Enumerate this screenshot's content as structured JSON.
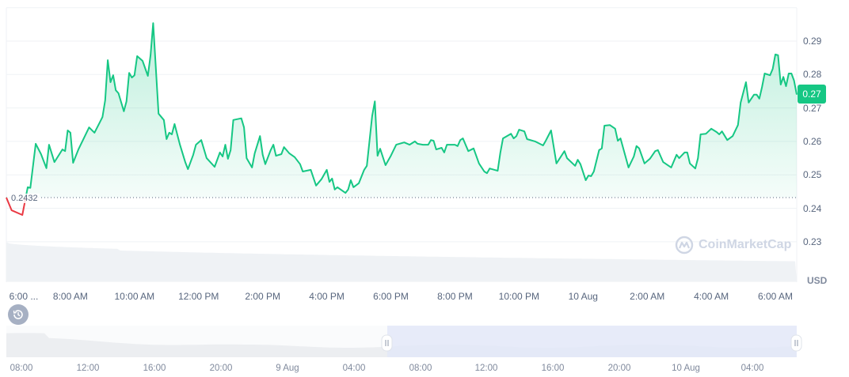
{
  "chart_data": {
    "type": "area",
    "currency_label": "USD",
    "baseline": {
      "value": 0.2432,
      "label": "0.2432"
    },
    "current_price_label": "0.27",
    "ylim": [
      0.218,
      0.3
    ],
    "y_ticks": [
      0.23,
      0.24,
      0.25,
      0.26,
      0.27,
      0.28,
      0.29
    ],
    "y_tick_labels": [
      "0.23",
      "0.24",
      "0.25",
      "0.26",
      "0.27",
      "0.28",
      "0.29"
    ],
    "x_range": [
      "9 Aug 06:00",
      "10 Aug 06:40"
    ],
    "x_ticks": [
      {
        "t": "9 Aug 06:00",
        "label": "6:00 ..."
      },
      {
        "t": "9 Aug 08:00",
        "label": "8:00 AM"
      },
      {
        "t": "9 Aug 10:00",
        "label": "10:00 AM"
      },
      {
        "t": "9 Aug 12:00",
        "label": "12:00 PM"
      },
      {
        "t": "9 Aug 14:00",
        "label": "2:00 PM"
      },
      {
        "t": "9 Aug 16:00",
        "label": "4:00 PM"
      },
      {
        "t": "9 Aug 18:00",
        "label": "6:00 PM"
      },
      {
        "t": "9 Aug 20:00",
        "label": "8:00 PM"
      },
      {
        "t": "9 Aug 22:00",
        "label": "10:00 PM"
      },
      {
        "t": "10 Aug 00:00",
        "label": "10 Aug"
      },
      {
        "t": "10 Aug 02:00",
        "label": "2:00 AM"
      },
      {
        "t": "10 Aug 04:00",
        "label": "4:00 AM"
      },
      {
        "t": "10 Aug 06:00",
        "label": "6:00 AM"
      }
    ],
    "grid": true,
    "colors": {
      "up": "#16c784",
      "down": "#ea3943",
      "volume": "#eff2f5",
      "navigator_selection": "#e8ecfa"
    },
    "series": [
      [
        "9 Aug 06:00",
        0.2432
      ],
      [
        "9 Aug 06:10",
        0.2394
      ],
      [
        "9 Aug 06:30",
        0.238
      ],
      [
        "9 Aug 06:40",
        0.2463
      ],
      [
        "9 Aug 06:45",
        0.2461
      ],
      [
        "9 Aug 06:55",
        0.2593
      ],
      [
        "9 Aug 07:05",
        0.2562
      ],
      [
        "9 Aug 07:15",
        0.252
      ],
      [
        "9 Aug 07:20",
        0.259
      ],
      [
        "9 Aug 07:30",
        0.2538
      ],
      [
        "9 Aug 07:45",
        0.2576
      ],
      [
        "9 Aug 07:50",
        0.2571
      ],
      [
        "9 Aug 07:55",
        0.2633
      ],
      [
        "9 Aug 08:00",
        0.2626
      ],
      [
        "9 Aug 08:05",
        0.2536
      ],
      [
        "9 Aug 08:15",
        0.2576
      ],
      [
        "9 Aug 08:25",
        0.2609
      ],
      [
        "9 Aug 08:35",
        0.2642
      ],
      [
        "9 Aug 08:45",
        0.2626
      ],
      [
        "9 Aug 08:55",
        0.2657
      ],
      [
        "9 Aug 09:00",
        0.2673
      ],
      [
        "9 Aug 09:05",
        0.2723
      ],
      [
        "9 Aug 09:10",
        0.2843
      ],
      [
        "9 Aug 09:15",
        0.2777
      ],
      [
        "9 Aug 09:20",
        0.2798
      ],
      [
        "9 Aug 09:25",
        0.2753
      ],
      [
        "9 Aug 09:30",
        0.2744
      ],
      [
        "9 Aug 09:40",
        0.269
      ],
      [
        "9 Aug 09:45",
        0.272
      ],
      [
        "9 Aug 09:50",
        0.2805
      ],
      [
        "9 Aug 09:55",
        0.2791
      ],
      [
        "9 Aug 10:00",
        0.2798
      ],
      [
        "9 Aug 10:05",
        0.2855
      ],
      [
        "9 Aug 10:15",
        0.2841
      ],
      [
        "9 Aug 10:25",
        0.2796
      ],
      [
        "9 Aug 10:30",
        0.2858
      ],
      [
        "9 Aug 10:35",
        0.2954
      ],
      [
        "9 Aug 10:45",
        0.2683
      ],
      [
        "9 Aug 10:55",
        0.2664
      ],
      [
        "9 Aug 11:00",
        0.2607
      ],
      [
        "9 Aug 11:05",
        0.2626
      ],
      [
        "9 Aug 11:10",
        0.2621
      ],
      [
        "9 Aug 11:15",
        0.2652
      ],
      [
        "9 Aug 11:25",
        0.259
      ],
      [
        "9 Aug 11:35",
        0.2538
      ],
      [
        "9 Aug 11:40",
        0.2517
      ],
      [
        "9 Aug 11:50",
        0.256
      ],
      [
        "9 Aug 11:55",
        0.259
      ],
      [
        "9 Aug 12:05",
        0.2604
      ],
      [
        "9 Aug 12:15",
        0.255
      ],
      [
        "9 Aug 12:30",
        0.2524
      ],
      [
        "9 Aug 12:40",
        0.2567
      ],
      [
        "9 Aug 12:45",
        0.2555
      ],
      [
        "9 Aug 12:50",
        0.259
      ],
      [
        "9 Aug 12:55",
        0.2548
      ],
      [
        "9 Aug 13:00",
        0.2574
      ],
      [
        "9 Aug 13:05",
        0.2664
      ],
      [
        "9 Aug 13:20",
        0.2669
      ],
      [
        "9 Aug 13:25",
        0.2642
      ],
      [
        "9 Aug 13:30",
        0.255
      ],
      [
        "9 Aug 13:40",
        0.2522
      ],
      [
        "9 Aug 13:45",
        0.2564
      ],
      [
        "9 Aug 13:55",
        0.2616
      ],
      [
        "9 Aug 14:00",
        0.256
      ],
      [
        "9 Aug 14:05",
        0.2532
      ],
      [
        "9 Aug 14:15",
        0.2574
      ],
      [
        "9 Aug 14:20",
        0.259
      ],
      [
        "9 Aug 14:25",
        0.2557
      ],
      [
        "9 Aug 14:35",
        0.2562
      ],
      [
        "9 Aug 14:40",
        0.2583
      ],
      [
        "9 Aug 14:50",
        0.2564
      ],
      [
        "9 Aug 15:00",
        0.2553
      ],
      [
        "9 Aug 15:10",
        0.2532
      ],
      [
        "9 Aug 15:15",
        0.251
      ],
      [
        "9 Aug 15:30",
        0.2515
      ],
      [
        "9 Aug 15:40",
        0.2468
      ],
      [
        "9 Aug 15:50",
        0.2487
      ],
      [
        "9 Aug 16:00",
        0.2515
      ],
      [
        "9 Aug 16:05",
        0.2479
      ],
      [
        "9 Aug 16:10",
        0.2489
      ],
      [
        "9 Aug 16:15",
        0.2456
      ],
      [
        "9 Aug 16:20",
        0.2463
      ],
      [
        "9 Aug 16:35",
        0.2446
      ],
      [
        "9 Aug 16:40",
        0.2456
      ],
      [
        "9 Aug 16:45",
        0.2484
      ],
      [
        "9 Aug 16:50",
        0.2463
      ],
      [
        "9 Aug 17:00",
        0.2475
      ],
      [
        "9 Aug 17:10",
        0.2515
      ],
      [
        "9 Aug 17:15",
        0.2527
      ],
      [
        "9 Aug 17:25",
        0.2676
      ],
      [
        "9 Aug 17:30",
        0.272
      ],
      [
        "9 Aug 17:35",
        0.2557
      ],
      [
        "9 Aug 17:40",
        0.2578
      ],
      [
        "9 Aug 17:50",
        0.2529
      ],
      [
        "9 Aug 18:00",
        0.2557
      ],
      [
        "9 Aug 18:10",
        0.259
      ],
      [
        "9 Aug 18:25",
        0.2597
      ],
      [
        "9 Aug 18:35",
        0.259
      ],
      [
        "9 Aug 18:45",
        0.26
      ],
      [
        "9 Aug 18:50",
        0.2593
      ],
      [
        "9 Aug 19:00",
        0.259
      ],
      [
        "9 Aug 19:10",
        0.259
      ],
      [
        "9 Aug 19:15",
        0.2604
      ],
      [
        "9 Aug 19:20",
        0.2602
      ],
      [
        "9 Aug 19:25",
        0.2576
      ],
      [
        "9 Aug 19:35",
        0.2581
      ],
      [
        "9 Aug 19:40",
        0.2567
      ],
      [
        "9 Aug 19:45",
        0.259
      ],
      [
        "9 Aug 20:00",
        0.259
      ],
      [
        "9 Aug 20:05",
        0.2586
      ],
      [
        "9 Aug 20:10",
        0.2604
      ],
      [
        "9 Aug 20:15",
        0.2609
      ],
      [
        "9 Aug 20:25",
        0.2571
      ],
      [
        "9 Aug 20:35",
        0.2579
      ],
      [
        "9 Aug 20:45",
        0.2534
      ],
      [
        "9 Aug 20:55",
        0.251
      ],
      [
        "9 Aug 21:00",
        0.2505
      ],
      [
        "9 Aug 21:05",
        0.2519
      ],
      [
        "9 Aug 21:20",
        0.2512
      ],
      [
        "9 Aug 21:25",
        0.2567
      ],
      [
        "9 Aug 21:30",
        0.2609
      ],
      [
        "9 Aug 21:45",
        0.2623
      ],
      [
        "9 Aug 21:50",
        0.2609
      ],
      [
        "9 Aug 21:55",
        0.2616
      ],
      [
        "9 Aug 22:00",
        0.2635
      ],
      [
        "9 Aug 22:10",
        0.263
      ],
      [
        "9 Aug 22:15",
        0.2607
      ],
      [
        "9 Aug 22:30",
        0.26
      ],
      [
        "9 Aug 22:45",
        0.2588
      ],
      [
        "9 Aug 22:50",
        0.2602
      ],
      [
        "9 Aug 23:00",
        0.2633
      ],
      [
        "9 Aug 23:10",
        0.2534
      ],
      [
        "9 Aug 23:25",
        0.2571
      ],
      [
        "9 Aug 23:30",
        0.255
      ],
      [
        "9 Aug 23:45",
        0.2527
      ],
      [
        "9 Aug 23:50",
        0.2545
      ],
      [
        "9 Aug 23:55",
        0.2532
      ],
      [
        "10 Aug 00:05",
        0.2484
      ],
      [
        "10 Aug 00:10",
        0.2498
      ],
      [
        "10 Aug 00:15",
        0.2496
      ],
      [
        "10 Aug 00:20",
        0.251
      ],
      [
        "10 Aug 00:30",
        0.2574
      ],
      [
        "10 Aug 00:35",
        0.2579
      ],
      [
        "10 Aug 00:40",
        0.2647
      ],
      [
        "10 Aug 00:50",
        0.2649
      ],
      [
        "10 Aug 01:00",
        0.2638
      ],
      [
        "10 Aug 01:05",
        0.2602
      ],
      [
        "10 Aug 01:10",
        0.2609
      ],
      [
        "10 Aug 01:25",
        0.2522
      ],
      [
        "10 Aug 01:35",
        0.2555
      ],
      [
        "10 Aug 01:40",
        0.2586
      ],
      [
        "10 Aug 01:45",
        0.2579
      ],
      [
        "10 Aug 01:55",
        0.2534
      ],
      [
        "10 Aug 02:05",
        0.2548
      ],
      [
        "10 Aug 02:15",
        0.2571
      ],
      [
        "10 Aug 02:20",
        0.2574
      ],
      [
        "10 Aug 02:30",
        0.2538
      ],
      [
        "10 Aug 02:45",
        0.2522
      ],
      [
        "10 Aug 02:55",
        0.256
      ],
      [
        "10 Aug 03:00",
        0.255
      ],
      [
        "10 Aug 03:10",
        0.2567
      ],
      [
        "10 Aug 03:15",
        0.2567
      ],
      [
        "10 Aug 03:20",
        0.2534
      ],
      [
        "10 Aug 03:30",
        0.2519
      ],
      [
        "10 Aug 03:35",
        0.255
      ],
      [
        "10 Aug 03:40",
        0.2621
      ],
      [
        "10 Aug 03:50",
        0.2623
      ],
      [
        "10 Aug 04:00",
        0.2638
      ],
      [
        "10 Aug 04:10",
        0.2628
      ],
      [
        "10 Aug 04:15",
        0.2621
      ],
      [
        "10 Aug 04:20",
        0.263
      ],
      [
        "10 Aug 04:30",
        0.2604
      ],
      [
        "10 Aug 04:40",
        0.2616
      ],
      [
        "10 Aug 04:50",
        0.2649
      ],
      [
        "10 Aug 04:55",
        0.2716
      ],
      [
        "10 Aug 05:05",
        0.2777
      ],
      [
        "10 Aug 05:10",
        0.2716
      ],
      [
        "10 Aug 05:20",
        0.274
      ],
      [
        "10 Aug 05:25",
        0.274
      ],
      [
        "10 Aug 05:30",
        0.2728
      ],
      [
        "10 Aug 05:35",
        0.2763
      ],
      [
        "10 Aug 05:40",
        0.2803
      ],
      [
        "10 Aug 05:50",
        0.2798
      ],
      [
        "10 Aug 05:55",
        0.2817
      ],
      [
        "10 Aug 06:00",
        0.286
      ],
      [
        "10 Aug 06:05",
        0.2858
      ],
      [
        "10 Aug 06:10",
        0.277
      ],
      [
        "10 Aug 06:15",
        0.2793
      ],
      [
        "10 Aug 06:20",
        0.2765
      ],
      [
        "10 Aug 06:25",
        0.2803
      ],
      [
        "10 Aug 06:30",
        0.2803
      ],
      [
        "10 Aug 06:35",
        0.2782
      ],
      [
        "10 Aug 06:40",
        0.274
      ]
    ],
    "navigator": {
      "tick_labels": [
        "08:00",
        "12:00",
        "16:00",
        "20:00",
        "9 Aug",
        "04:00",
        "08:00",
        "12:00",
        "16:00",
        "20:00",
        "10 Aug",
        "04:00"
      ]
    }
  },
  "watermark": "CoinMarketCap",
  "icons": {
    "history": "history-clock-icon",
    "watermark_logo": "coinmarketcap-logo"
  }
}
